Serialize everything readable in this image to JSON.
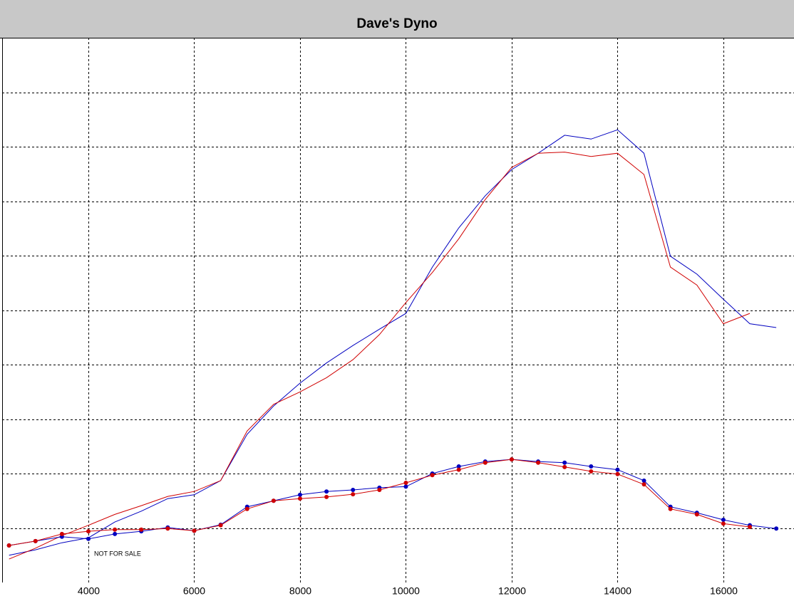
{
  "chart_data": {
    "type": "line",
    "title": "Dave's Dyno",
    "annotation": "NOT FOR SALE",
    "x": [
      2500,
      3000,
      3500,
      4000,
      4500,
      5000,
      5500,
      6000,
      6500,
      7000,
      7500,
      8000,
      8500,
      9000,
      9500,
      10000,
      10500,
      11000,
      11500,
      12000,
      12500,
      13000,
      13500,
      14000,
      14500,
      15000,
      15500,
      16000,
      16500,
      17000
    ],
    "series": [
      {
        "color": "#0000c0",
        "markers": false,
        "values": [
          0.5,
          0.6,
          0.73,
          0.82,
          1.11,
          1.31,
          1.54,
          1.61,
          1.87,
          2.72,
          3.24,
          3.66,
          4.03,
          4.35,
          4.65,
          4.94,
          5.79,
          6.51,
          7.1,
          7.58,
          7.88,
          8.21,
          8.14,
          8.31,
          7.88,
          5.99,
          5.66,
          5.2,
          4.75,
          4.68
        ]
      },
      {
        "color": "#d00000",
        "markers": false,
        "values": [
          0.43,
          0.63,
          0.86,
          1.05,
          1.25,
          1.41,
          1.58,
          1.67,
          1.87,
          2.78,
          3.27,
          3.5,
          3.76,
          4.09,
          4.55,
          5.14,
          5.69,
          6.31,
          7.03,
          7.62,
          7.88,
          7.9,
          7.82,
          7.88,
          7.49,
          5.79,
          5.46,
          4.75,
          4.94,
          null
        ]
      },
      {
        "color": "#0000c0",
        "markers": true,
        "values": [
          0.68,
          0.76,
          0.84,
          0.8,
          0.89,
          0.94,
          1.01,
          0.95,
          1.06,
          1.39,
          1.5,
          1.61,
          1.67,
          1.7,
          1.74,
          1.76,
          2.0,
          2.13,
          2.22,
          2.26,
          2.22,
          2.2,
          2.13,
          2.07,
          1.87,
          1.39,
          1.28,
          1.15,
          1.05,
          0.99
        ]
      },
      {
        "color": "#d00000",
        "markers": true,
        "values": [
          0.68,
          0.76,
          0.89,
          0.94,
          0.97,
          0.97,
          0.99,
          0.95,
          1.05,
          1.35,
          1.5,
          1.54,
          1.57,
          1.62,
          1.7,
          1.83,
          1.97,
          2.07,
          2.2,
          2.26,
          2.2,
          2.12,
          2.04,
          1.99,
          1.8,
          1.35,
          1.25,
          1.08,
          1.02,
          null
        ]
      }
    ],
    "xlim": [
      2370,
      17335
    ],
    "xticks": [
      4000,
      6000,
      8000,
      10000,
      12000,
      14000,
      16000
    ],
    "ylim": [
      0,
      10
    ],
    "yticks": [
      1,
      2,
      3,
      4,
      5,
      6,
      7,
      8,
      9
    ],
    "grid": true
  }
}
